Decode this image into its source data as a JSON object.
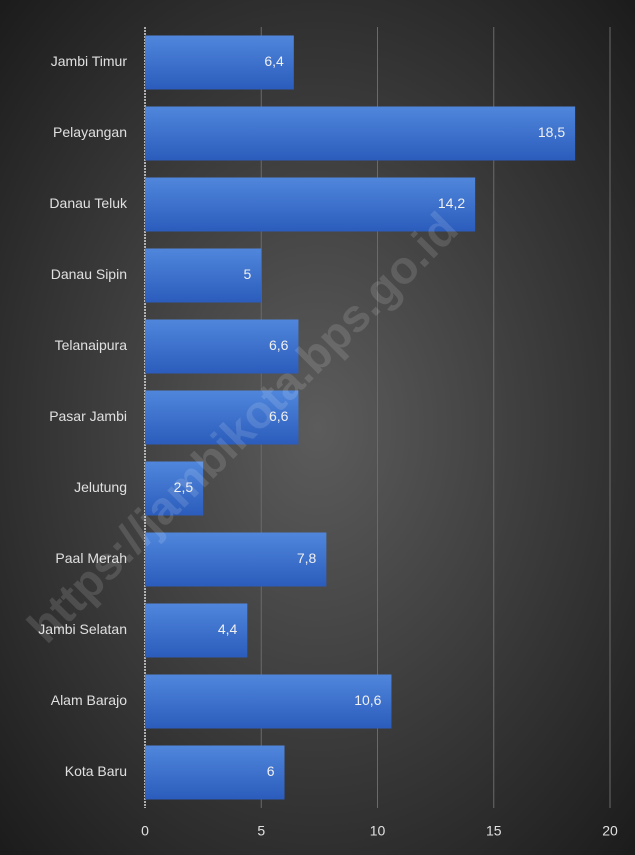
{
  "chart_data": {
    "type": "bar",
    "orientation": "horizontal",
    "categories": [
      "Jambi Timur",
      "Pelayangan",
      "Danau Teluk",
      "Danau Sipin",
      "Telanaipura",
      "Pasar Jambi",
      "Jelutung",
      "Paal Merah",
      "Jambi Selatan",
      "Alam Barajo",
      "Kota Baru"
    ],
    "values": [
      6.4,
      18.5,
      14.2,
      5,
      6.6,
      6.6,
      2.5,
      7.8,
      4.4,
      10.6,
      6
    ],
    "value_labels": [
      "6,4",
      "18,5",
      "14,2",
      "5",
      "6,6",
      "6,6",
      "2,5",
      "7,8",
      "4,4",
      "10,6",
      "6"
    ],
    "color": "#3d6fcc",
    "xlim": [
      0,
      20
    ],
    "xticks": [
      0,
      5,
      10,
      15,
      20
    ],
    "grid": true,
    "annotation": "https://jambikota.bps.go.id"
  }
}
